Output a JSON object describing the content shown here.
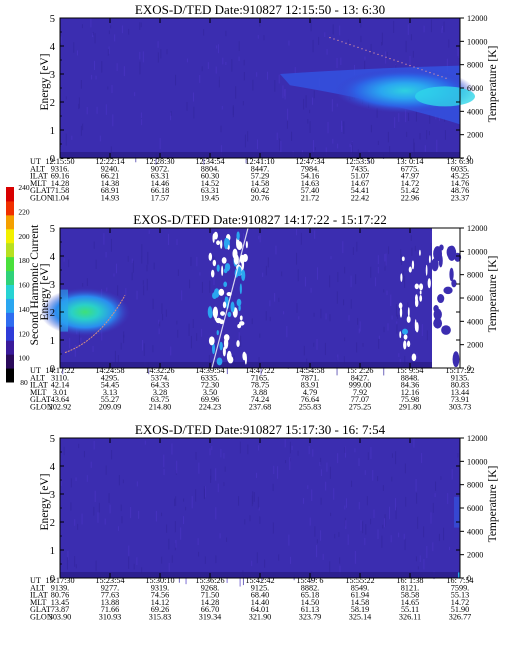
{
  "colorbar": {
    "label": "Second Harmonic Current",
    "ticks": [
      "240",
      "220",
      "200",
      "180",
      "160",
      "140",
      "120",
      "100",
      "80"
    ],
    "colors": [
      "#000000",
      "#2a0a5a",
      "#3a1a9a",
      "#2e3cd8",
      "#2f6df0",
      "#2aa6f0",
      "#27d3d3",
      "#2fd27a",
      "#4ae03c",
      "#b8e020",
      "#f2f000",
      "#f4a000",
      "#f03000",
      "#d80000"
    ]
  },
  "chart_data": [
    {
      "type": "heatmap",
      "title": "EXOS-D/TED   Date:910827  12:15:50 - 13: 6:30",
      "ylabel": "Energy [eV]",
      "ylabel_right": "Temperature [K]",
      "ylim": [
        0,
        5
      ],
      "y_ticks": [
        "0",
        "1",
        "2",
        "3",
        "4",
        "5"
      ],
      "y2lim": [
        0,
        12000
      ],
      "y2_ticks": [
        "0",
        "2000",
        "4000",
        "6000",
        "8000",
        "10000",
        "12000"
      ],
      "table": {
        "row_labels": [
          "UT",
          "ALT",
          "ILAT",
          "MLT",
          "GLAT",
          "GLON"
        ],
        "columns": [
          [
            "12:15:50",
            "9316.",
            "69.16",
            "14.28",
            "71.58",
            "11.04"
          ],
          [
            "12:22:14",
            "9240.",
            "66.21",
            "14.38",
            "68.91",
            "14.93"
          ],
          [
            "12:28:30",
            "9072.",
            "63.31",
            "14.46",
            "66.18",
            "17.57"
          ],
          [
            "12:34:54",
            "8804.",
            "60.30",
            "14.52",
            "63.31",
            "19.45"
          ],
          [
            "12:41:10",
            "8447.",
            "57.29",
            "14.58",
            "60.42",
            "20.76"
          ],
          [
            "12:47:34",
            "7984.",
            "54.16",
            "14.63",
            "57.40",
            "21.72"
          ],
          [
            "12:53:50",
            "7435.",
            "51.07",
            "14.67",
            "54.41",
            "22.42"
          ],
          [
            "13: 0:14",
            "6775.",
            "47.97",
            "14.72",
            "51.42",
            "22.96"
          ],
          [
            "13: 6:30",
            "6035.",
            "45.25",
            "14.76",
            "48.76",
            "23.37"
          ]
        ]
      }
    },
    {
      "type": "heatmap",
      "title": "EXOS-D/TED   Date:910827  14:17:22 - 15:17:22",
      "ylabel": "Energy [eV]",
      "ylabel_right": "Temperature [K]",
      "ylim": [
        0,
        5
      ],
      "y_ticks": [
        "0",
        "1",
        "2",
        "3",
        "4",
        "5"
      ],
      "y2lim": [
        0,
        12000
      ],
      "y2_ticks": [
        "0",
        "2000",
        "4000",
        "6000",
        "8000",
        "10000",
        "12000"
      ],
      "table": {
        "row_labels": [
          "UT",
          "ALT",
          "ILAT",
          "MLT",
          "GLAT",
          "GLON"
        ],
        "columns": [
          [
            "14:17:22",
            "3110.",
            "42.14",
            "3.01",
            "43.64",
            "202.92"
          ],
          [
            "14:24:58",
            "4295.",
            "54.45",
            "3.13",
            "55.27",
            "209.09"
          ],
          [
            "14:32:26",
            "5374.",
            "64.33",
            "3.28",
            "63.75",
            "214.80"
          ],
          [
            "14:39:54",
            "6335.",
            "72.30",
            "3.50",
            "69.96",
            "224.23"
          ],
          [
            "14:47:22",
            "7165.",
            "78.75",
            "3.88",
            "74.24",
            "237.68"
          ],
          [
            "14:54:58",
            "7871.",
            "83.91",
            "4.79",
            "76.64",
            "255.83"
          ],
          [
            "15: 2:26",
            "8427.",
            "999.00",
            "7.92",
            "77.07",
            "275.25"
          ],
          [
            "15: 9:54",
            "8848.",
            "84.36",
            "12.16",
            "75.98",
            "291.80"
          ],
          [
            "15:17:22",
            "9135.",
            "80.83",
            "13.44",
            "73.91",
            "303.73"
          ]
        ]
      }
    },
    {
      "type": "heatmap",
      "title": "EXOS-D/TED   Date:910827  15:17:30 - 16: 7:54",
      "ylabel": "Energy [eV]",
      "ylabel_right": "Temperature [K]",
      "ylim": [
        0,
        5
      ],
      "y_ticks": [
        "0",
        "1",
        "2",
        "3",
        "4",
        "5"
      ],
      "y2lim": [
        0,
        12000
      ],
      "y2_ticks": [
        "0",
        "2000",
        "4000",
        "6000",
        "8000",
        "10000",
        "12000"
      ],
      "table": {
        "row_labels": [
          "UT",
          "ALT",
          "ILAT",
          "MLT",
          "GLAT",
          "GLON"
        ],
        "columns": [
          [
            "15:17:30",
            "9139.",
            "80.76",
            "13.45",
            "73.87",
            "303.90"
          ],
          [
            "15:23:54",
            "9277.",
            "77.63",
            "13.88",
            "71.66",
            "310.93"
          ],
          [
            "15:30:10",
            "9319.",
            "74.56",
            "14.12",
            "69.26",
            "315.83"
          ],
          [
            "15:36:26",
            "9268.",
            "71.50",
            "14.28",
            "66.70",
            "319.34"
          ],
          [
            "15:42:42",
            "9125.",
            "68.40",
            "14.40",
            "64.01",
            "321.90"
          ],
          [
            "15:49: 6",
            "8882.",
            "65.18",
            "14.50",
            "61.13",
            "323.79"
          ],
          [
            "15:55:22",
            "8549.",
            "61.94",
            "14.58",
            "58.19",
            "325.14"
          ],
          [
            "16: 1:38",
            "8121.",
            "58.58",
            "14.65",
            "55.11",
            "326.11"
          ],
          [
            "16: 7:54",
            "7599.",
            "55.13",
            "14.72",
            "51.90",
            "326.77"
          ]
        ]
      }
    }
  ]
}
